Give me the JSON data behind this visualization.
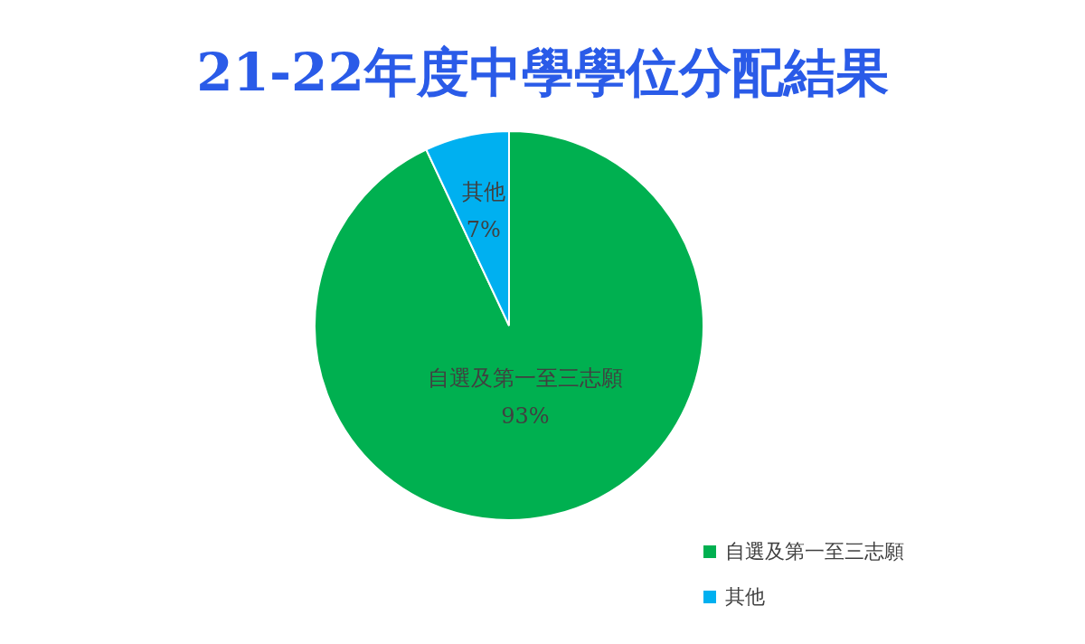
{
  "chart_data": {
    "type": "pie",
    "title": "21-22年度中學學位分配結果",
    "categories": [
      "自選及第一至三志願",
      "其他"
    ],
    "values": [
      93,
      7
    ],
    "colors": [
      "#00b050",
      "#00b0f0"
    ],
    "value_labels": [
      "93%",
      "7%"
    ],
    "legend": "bottom right"
  }
}
